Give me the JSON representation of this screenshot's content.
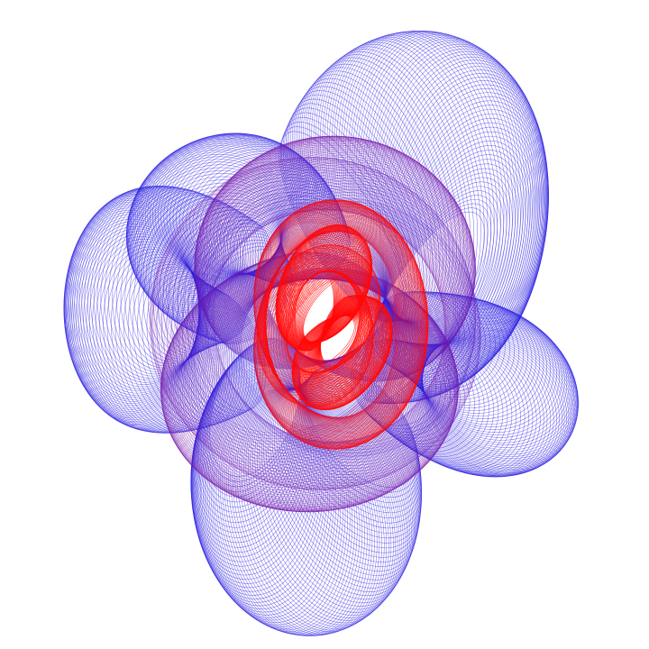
{
  "artwork": {
    "kind": "harmonograph-style line art",
    "background_color": "#ffffff",
    "outer_color": "#2a1ee0",
    "middle_color": "#7a1aa8",
    "inner_color": "#ff0a0a",
    "caption": ""
  }
}
